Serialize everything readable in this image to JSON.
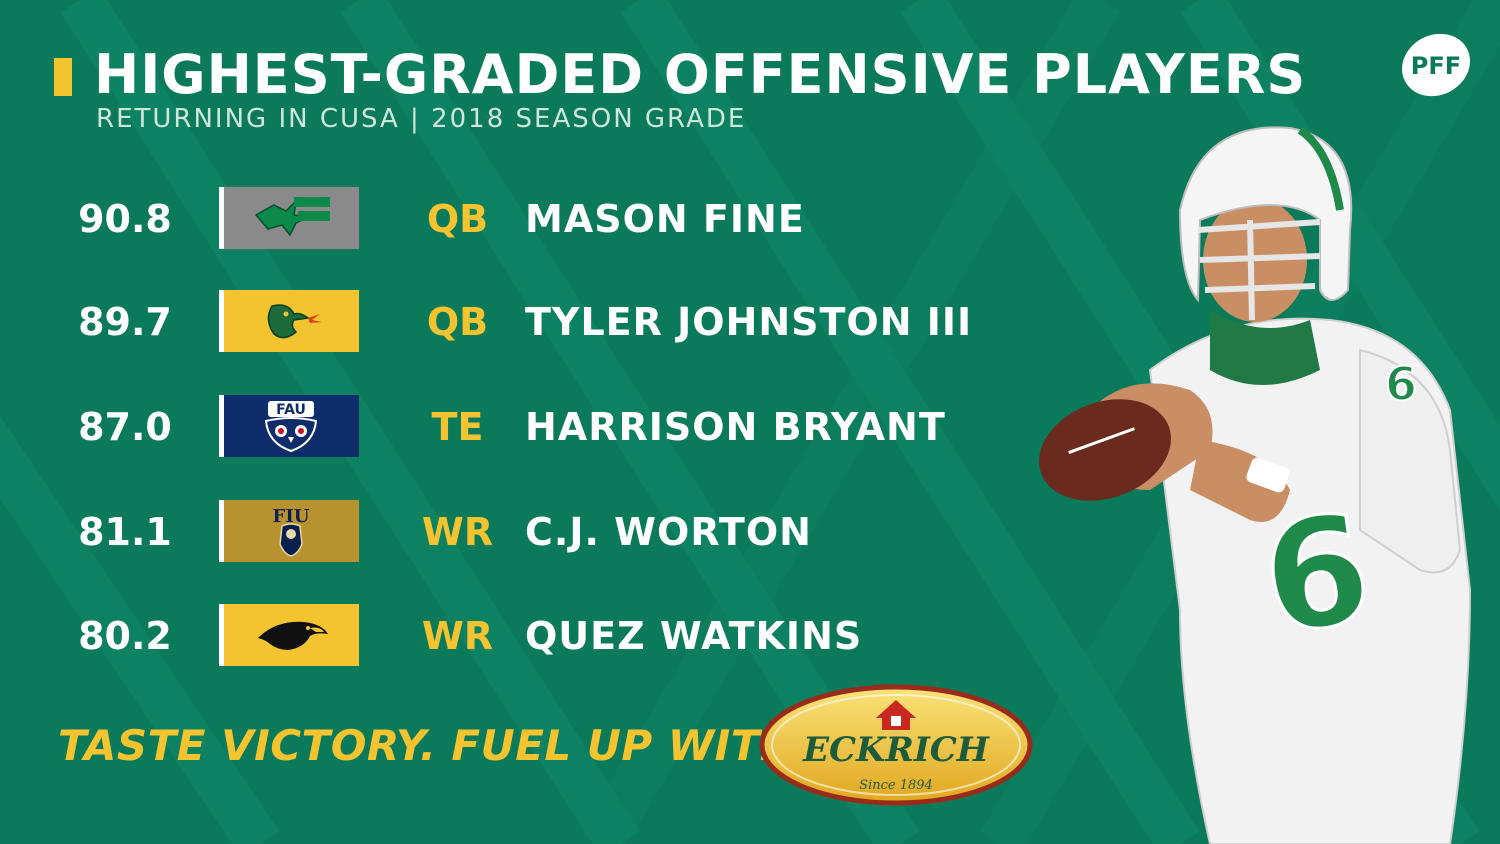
{
  "header": {
    "title": "HIGHEST-GRADED OFFENSIVE PLAYERS",
    "subtitle": "RETURNING IN CUSA | 2018 SEASON GRADE",
    "logo_text": "PFF"
  },
  "players": [
    {
      "grade": "90.8",
      "team_icon": "north-texas-logo",
      "team_color": "#8a8a8a",
      "position": "QB",
      "name": "MASON FINE"
    },
    {
      "grade": "89.7",
      "team_icon": "uab-dragon-logo",
      "team_color": "#f4c430",
      "position": "QB",
      "name": "TYLER JOHNSTON III"
    },
    {
      "grade": "87.0",
      "team_icon": "fau-owl-logo",
      "team_color": "#0f2c6b",
      "position": "TE",
      "name": "HARRISON BRYANT"
    },
    {
      "grade": "81.1",
      "team_icon": "fiu-panther-logo",
      "team_color": "#b8922e",
      "position": "WR",
      "name": "C.J. WORTON"
    },
    {
      "grade": "80.2",
      "team_icon": "southern-miss-eagle-logo",
      "team_color": "#f4c430",
      "position": "WR",
      "name": "QUEZ WATKINS"
    }
  ],
  "sponsor": {
    "tagline": "TASTE VICTORY. FUEL UP WITH",
    "brand": "ECKRICH",
    "since": "Since 1894"
  },
  "colors": {
    "background": "#0b7a5b",
    "accent": "#f4c430",
    "text": "#ffffff"
  }
}
